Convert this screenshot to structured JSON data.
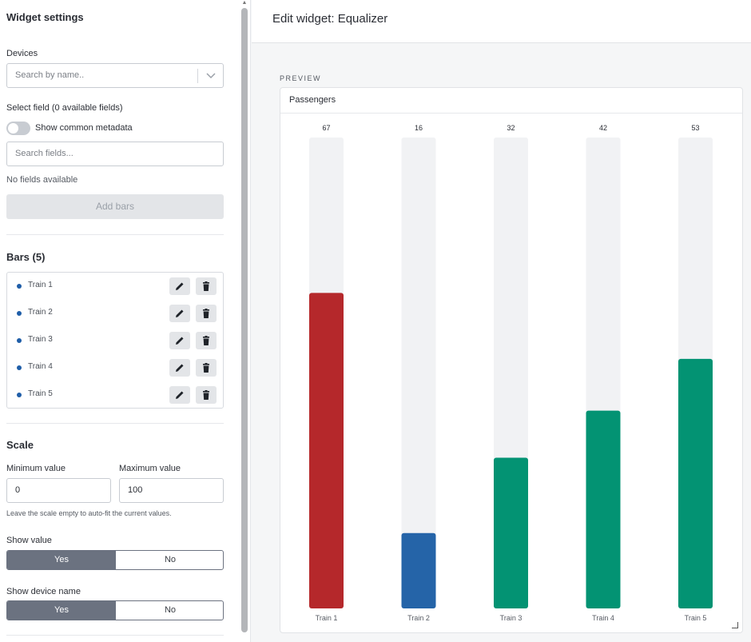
{
  "sidebar": {
    "title": "Widget settings",
    "devices_label": "Devices",
    "devices_placeholder": "Search by name..",
    "select_field_label": "Select field (0 available fields)",
    "show_common_metadata": "Show common metadata",
    "search_fields_placeholder": "Search fields...",
    "no_fields": "No fields available",
    "add_bars": "Add bars",
    "bars_title": "Bars (5)",
    "bars": [
      {
        "label": "Train 1"
      },
      {
        "label": "Train 2"
      },
      {
        "label": "Train 3"
      },
      {
        "label": "Train 4"
      },
      {
        "label": "Train 5"
      }
    ],
    "scale_title": "Scale",
    "min_label": "Minimum value",
    "max_label": "Maximum value",
    "min_value": "0",
    "max_value": "100",
    "scale_hint": "Leave the scale empty to auto-fit the current values.",
    "show_value_label": "Show value",
    "show_device_name_label": "Show device name",
    "yes": "Yes",
    "no": "No"
  },
  "header": {
    "title": "Edit widget: Equalizer"
  },
  "preview": {
    "label": "PREVIEW",
    "card_title": "Passengers"
  },
  "colors": {
    "red": "#b5282b",
    "blue": "#2564a8",
    "green": "#039373",
    "track": "#f1f2f4"
  },
  "chart_data": {
    "type": "bar",
    "title": "Passengers",
    "categories": [
      "Train 1",
      "Train 2",
      "Train 3",
      "Train 4",
      "Train 5"
    ],
    "values": [
      67,
      16,
      32,
      42,
      53
    ],
    "bar_colors": [
      "#b5282b",
      "#2564a8",
      "#039373",
      "#039373",
      "#039373"
    ],
    "ylim": [
      0,
      100
    ]
  }
}
